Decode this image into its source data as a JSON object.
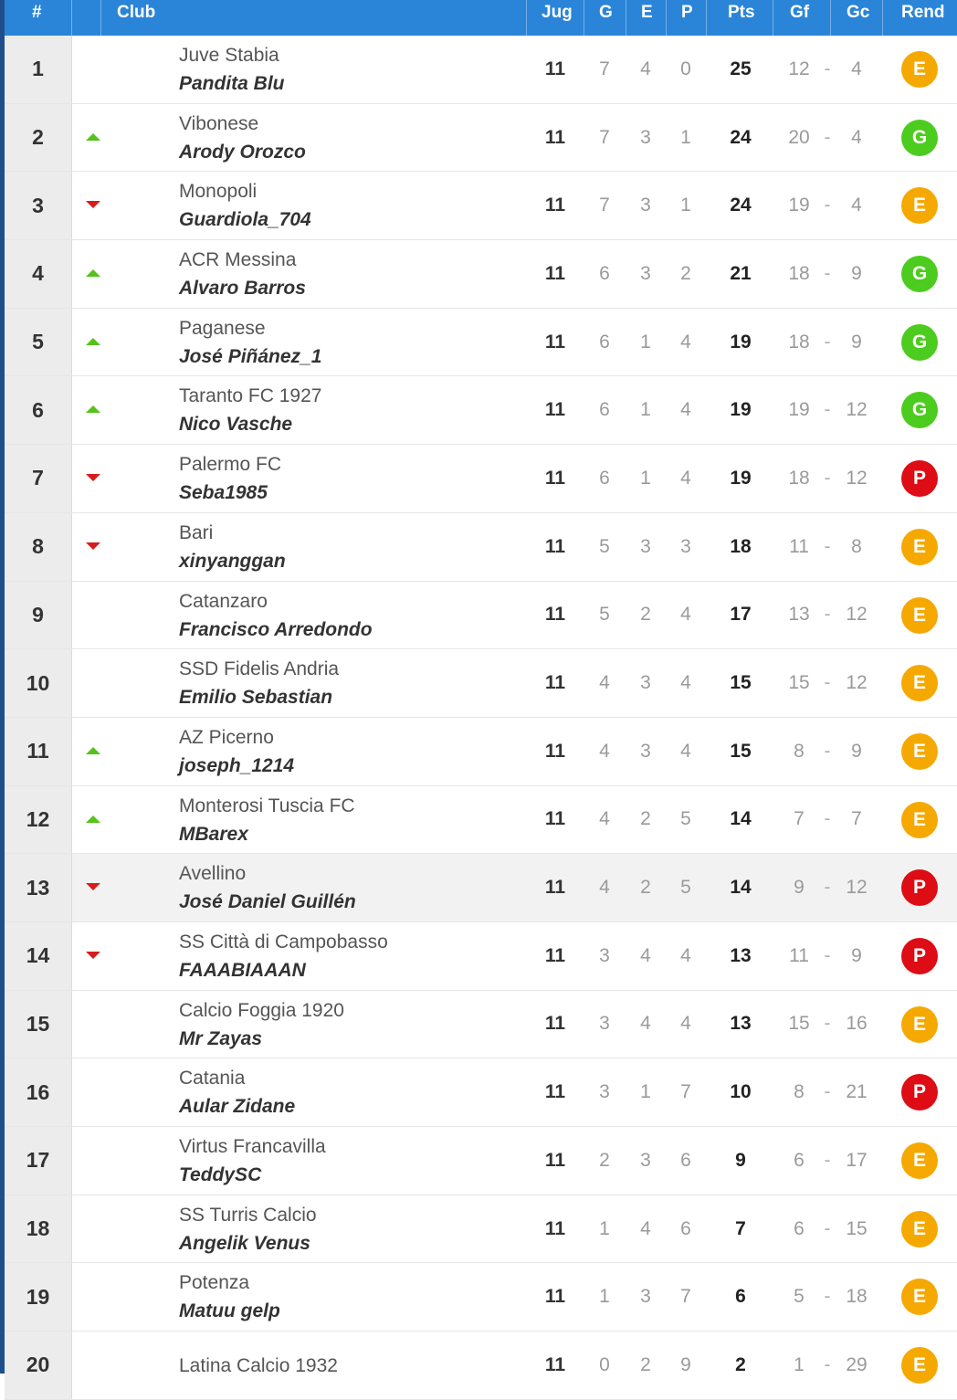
{
  "header": {
    "pos": "#",
    "club": "Club",
    "jug": "Jug",
    "g": "G",
    "e": "E",
    "p": "P",
    "pts": "Pts",
    "gf": "Gf",
    "gc": "Gc",
    "rend": "Rend"
  },
  "colors": {
    "header_bg": "#2a85d8",
    "up": "#55c21b",
    "down": "#d91b1b",
    "rend_E": "#f5a900",
    "rend_G": "#4ccc1e",
    "rend_P": "#dd0c15"
  },
  "rows": [
    {
      "pos": "1",
      "trend": "none",
      "club": "Juve Stabia",
      "manager": "Pandita Blu",
      "jug": "11",
      "g": "7",
      "e": "4",
      "p": "0",
      "pts": "25",
      "gf": "12",
      "gc": "4",
      "rend": "E"
    },
    {
      "pos": "2",
      "trend": "up",
      "club": "Vibonese",
      "manager": "Arody Orozco",
      "jug": "11",
      "g": "7",
      "e": "3",
      "p": "1",
      "pts": "24",
      "gf": "20",
      "gc": "4",
      "rend": "G"
    },
    {
      "pos": "3",
      "trend": "down",
      "club": "Monopoli",
      "manager": "Guardiola_704",
      "jug": "11",
      "g": "7",
      "e": "3",
      "p": "1",
      "pts": "24",
      "gf": "19",
      "gc": "4",
      "rend": "E"
    },
    {
      "pos": "4",
      "trend": "up",
      "club": "ACR Messina",
      "manager": "Alvaro Barros",
      "jug": "11",
      "g": "6",
      "e": "3",
      "p": "2",
      "pts": "21",
      "gf": "18",
      "gc": "9",
      "rend": "G"
    },
    {
      "pos": "5",
      "trend": "up",
      "club": "Paganese",
      "manager": "José Piñánez_1",
      "jug": "11",
      "g": "6",
      "e": "1",
      "p": "4",
      "pts": "19",
      "gf": "18",
      "gc": "9",
      "rend": "G"
    },
    {
      "pos": "6",
      "trend": "up",
      "club": "Taranto FC 1927",
      "manager": "Nico Vasche",
      "jug": "11",
      "g": "6",
      "e": "1",
      "p": "4",
      "pts": "19",
      "gf": "19",
      "gc": "12",
      "rend": "G"
    },
    {
      "pos": "7",
      "trend": "down",
      "club": "Palermo FC",
      "manager": "Seba1985",
      "jug": "11",
      "g": "6",
      "e": "1",
      "p": "4",
      "pts": "19",
      "gf": "18",
      "gc": "12",
      "rend": "P"
    },
    {
      "pos": "8",
      "trend": "down",
      "club": "Bari",
      "manager": "xinyanggan",
      "jug": "11",
      "g": "5",
      "e": "3",
      "p": "3",
      "pts": "18",
      "gf": "11",
      "gc": "8",
      "rend": "E"
    },
    {
      "pos": "9",
      "trend": "none",
      "club": "Catanzaro",
      "manager": "Francisco Arredondo",
      "jug": "11",
      "g": "5",
      "e": "2",
      "p": "4",
      "pts": "17",
      "gf": "13",
      "gc": "12",
      "rend": "E"
    },
    {
      "pos": "10",
      "trend": "none",
      "club": "SSD Fidelis Andria",
      "manager": "Emilio Sebastian",
      "jug": "11",
      "g": "4",
      "e": "3",
      "p": "4",
      "pts": "15",
      "gf": "15",
      "gc": "12",
      "rend": "E"
    },
    {
      "pos": "11",
      "trend": "up",
      "club": "AZ Picerno",
      "manager": "joseph_1214",
      "jug": "11",
      "g": "4",
      "e": "3",
      "p": "4",
      "pts": "15",
      "gf": "8",
      "gc": "9",
      "rend": "E"
    },
    {
      "pos": "12",
      "trend": "up",
      "club": "Monterosi Tuscia FC",
      "manager": "MBarex",
      "jug": "11",
      "g": "4",
      "e": "2",
      "p": "5",
      "pts": "14",
      "gf": "7",
      "gc": "7",
      "rend": "E"
    },
    {
      "pos": "13",
      "trend": "down",
      "club": "Avellino",
      "manager": "José Daniel Guillén",
      "jug": "11",
      "g": "4",
      "e": "2",
      "p": "5",
      "pts": "14",
      "gf": "9",
      "gc": "12",
      "rend": "P",
      "highlight": true
    },
    {
      "pos": "14",
      "trend": "down",
      "club": "SS Città di Campobasso",
      "manager": "FAAABIAAAN",
      "jug": "11",
      "g": "3",
      "e": "4",
      "p": "4",
      "pts": "13",
      "gf": "11",
      "gc": "9",
      "rend": "P"
    },
    {
      "pos": "15",
      "trend": "none",
      "club": "Calcio Foggia 1920",
      "manager": "Mr Zayas",
      "jug": "11",
      "g": "3",
      "e": "4",
      "p": "4",
      "pts": "13",
      "gf": "15",
      "gc": "16",
      "rend": "E"
    },
    {
      "pos": "16",
      "trend": "none",
      "club": "Catania",
      "manager": "Aular Zidane",
      "jug": "11",
      "g": "3",
      "e": "1",
      "p": "7",
      "pts": "10",
      "gf": "8",
      "gc": "21",
      "rend": "P"
    },
    {
      "pos": "17",
      "trend": "none",
      "club": "Virtus Francavilla",
      "manager": "TeddySC",
      "jug": "11",
      "g": "2",
      "e": "3",
      "p": "6",
      "pts": "9",
      "gf": "6",
      "gc": "17",
      "rend": "E"
    },
    {
      "pos": "18",
      "trend": "none",
      "club": "SS Turris Calcio",
      "manager": "Angelik Venus",
      "jug": "11",
      "g": "1",
      "e": "4",
      "p": "6",
      "pts": "7",
      "gf": "6",
      "gc": "15",
      "rend": "E"
    },
    {
      "pos": "19",
      "trend": "none",
      "club": "Potenza",
      "manager": "Matuu gelp",
      "jug": "11",
      "g": "1",
      "e": "3",
      "p": "7",
      "pts": "6",
      "gf": "5",
      "gc": "18",
      "rend": "E"
    },
    {
      "pos": "20",
      "trend": "none",
      "club": "Latina Calcio 1932",
      "manager": "",
      "jug": "11",
      "g": "0",
      "e": "2",
      "p": "9",
      "pts": "2",
      "gf": "1",
      "gc": "29",
      "rend": "E"
    }
  ]
}
